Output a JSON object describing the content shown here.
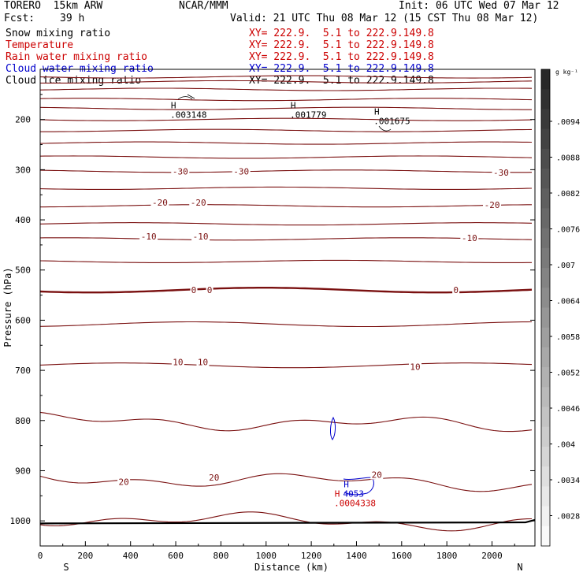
{
  "header": {
    "model": "TORERO  15km ARW",
    "org": "NCAR/MMM",
    "init": "Init: 06 UTC Wed 07 Mar 12",
    "fcst_label": "Fcst:",
    "fcst_value": "39 h",
    "valid": "Valid: 21 UTC Thu 08 Mar 12 (15 CST Thu 08 Mar 12)"
  },
  "fields": [
    {
      "name": "Snow mixing ratio",
      "xy": "XY= 222.9.  5.1 to 222.9.149.8",
      "color": "#000000"
    },
    {
      "name": "Temperature",
      "xy": "XY= 222.9.  5.1 to 222.9.149.8",
      "color": "#cc0000"
    },
    {
      "name": "Rain water mixing ratio",
      "xy": "XY= 222.9.  5.1 to 222.9.149.8",
      "color": "#cc0000"
    },
    {
      "name": "Cloud water mixing ratio",
      "xy": "XY= 222.9.  5.1 to 222.9.149.8",
      "color": "#0000cc"
    },
    {
      "name": "Cloud ice mixing ratio",
      "xy": "XY= 222.9.  5.1 to 222.9.149.8",
      "color": "#000000"
    }
  ],
  "chart_data": {
    "type": "contour-cross-section",
    "xlabel": "Distance (km)",
    "ylabel": "Pressure (hPa)",
    "xlim": [
      0,
      2190
    ],
    "ylim": [
      1050,
      100
    ],
    "x_ticks": [
      0,
      200,
      400,
      600,
      800,
      1000,
      1200,
      1400,
      1600,
      1800,
      2000
    ],
    "y_ticks": [
      200,
      300,
      400,
      500,
      600,
      700,
      800,
      900,
      1000
    ],
    "end_labels": {
      "left": "S",
      "right": "N"
    },
    "colorbar": {
      "unit": "g kg⁻¹",
      "ticks": [
        ".0094",
        ".0088",
        ".0082",
        ".0076",
        ".007",
        ".0064",
        ".0058",
        ".0052",
        ".0046",
        ".004",
        ".0034",
        ".0028"
      ]
    },
    "isotherm_levels": [
      {
        "p": 115,
        "label": null
      },
      {
        "p": 125,
        "label": null
      },
      {
        "p": 140,
        "label": null
      },
      {
        "p": 160,
        "label": null
      },
      {
        "p": 178,
        "label": null
      },
      {
        "p": 200,
        "label": null
      },
      {
        "p": 222,
        "label": null
      },
      {
        "p": 247,
        "label": null
      },
      {
        "p": 275,
        "label": null
      },
      {
        "p": 303,
        "label": "-30"
      },
      {
        "p": 337,
        "label": null
      },
      {
        "p": 372,
        "label": "-20"
      },
      {
        "p": 408,
        "label": null
      },
      {
        "p": 438,
        "label": "-10"
      },
      {
        "p": 483,
        "label": null
      },
      {
        "p": 540,
        "label": "0"
      },
      {
        "p": 608,
        "label": null
      },
      {
        "p": 690,
        "label": "10"
      },
      {
        "p": 805,
        "label": null
      },
      {
        "p": 920,
        "label": "20"
      },
      {
        "p": 1000,
        "label": null
      }
    ],
    "temperature_labels": [
      {
        "x": 620,
        "p": 303,
        "text": "-30"
      },
      {
        "x": 890,
        "p": 303,
        "text": "-30"
      },
      {
        "x": 2040,
        "p": 306,
        "text": "-30"
      },
      {
        "x": 530,
        "p": 365,
        "text": "-20"
      },
      {
        "x": 700,
        "p": 365,
        "text": "-20"
      },
      {
        "x": 2000,
        "p": 370,
        "text": "-20"
      },
      {
        "x": 480,
        "p": 433,
        "text": "-10"
      },
      {
        "x": 710,
        "p": 433,
        "text": "-10"
      },
      {
        "x": 1900,
        "p": 436,
        "text": "-10"
      },
      {
        "x": 680,
        "p": 540,
        "text": "0"
      },
      {
        "x": 750,
        "p": 540,
        "text": "0"
      },
      {
        "x": 1840,
        "p": 540,
        "text": "0"
      },
      {
        "x": 610,
        "p": 683,
        "text": "10"
      },
      {
        "x": 720,
        "p": 683,
        "text": "10"
      },
      {
        "x": 1660,
        "p": 693,
        "text": "10"
      },
      {
        "x": 370,
        "p": 922,
        "text": "20"
      },
      {
        "x": 770,
        "p": 913,
        "text": "20"
      },
      {
        "x": 1490,
        "p": 908,
        "text": "20"
      }
    ],
    "highs": [
      {
        "x": 590,
        "p": 178,
        "mark": "H",
        "value": ".003148"
      },
      {
        "x": 1120,
        "p": 178,
        "mark": "H",
        "value": ".001779"
      },
      {
        "x": 1490,
        "p": 190,
        "mark": "H",
        "value": ".001675"
      },
      {
        "x": 1355,
        "p": 933,
        "mark": "H",
        "value": "4053",
        "color": "#0000cc"
      },
      {
        "x": 1315,
        "p": 952,
        "mark": "H",
        "value": ".0004338",
        "color": "#cc0000"
      }
    ]
  }
}
